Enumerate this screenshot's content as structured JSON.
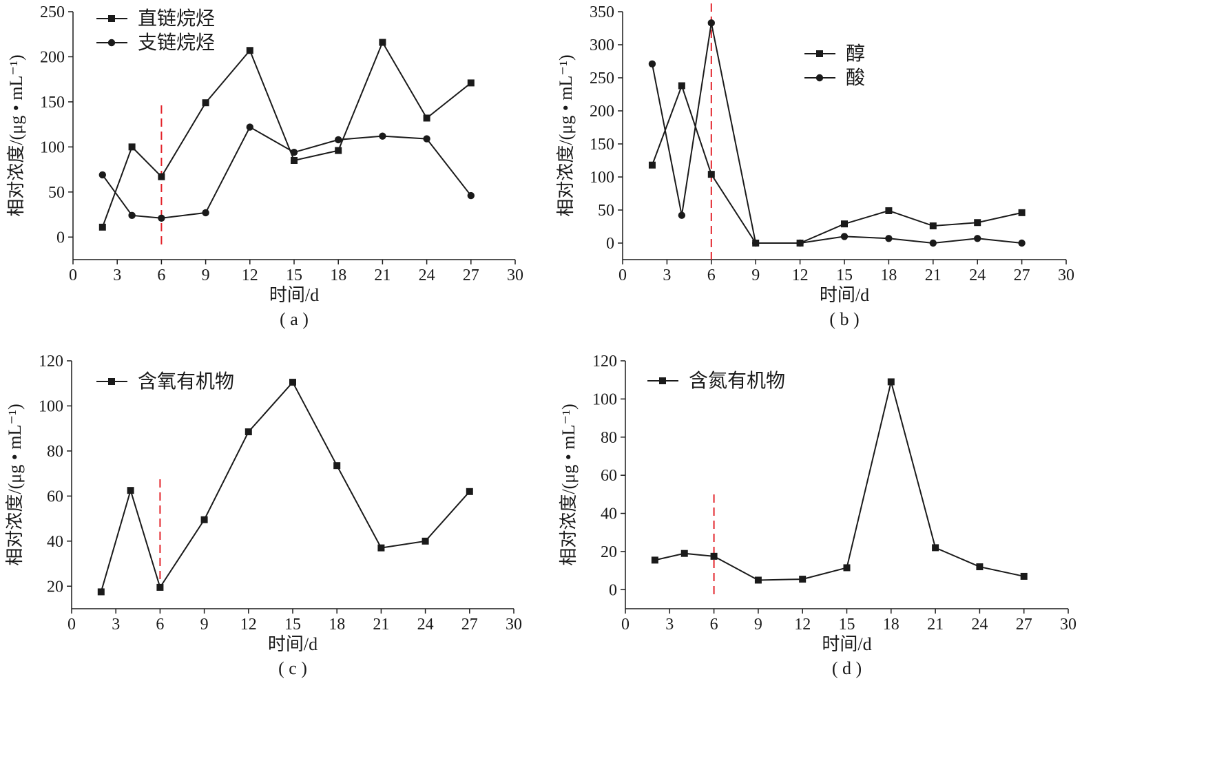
{
  "chart_data": [
    {
      "type": "line",
      "panel_label": "( a )",
      "xlabel": "时间/d",
      "ylabel": "相对浓度/(μg • mL⁻¹)",
      "xlim": [
        0,
        30
      ],
      "ylim": [
        -25,
        250
      ],
      "xticks": [
        0,
        3,
        6,
        9,
        12,
        15,
        18,
        21,
        24,
        27,
        30
      ],
      "yticks": [
        0,
        50,
        100,
        150,
        200,
        250
      ],
      "marker_line_x": 6,
      "grid": false,
      "legend_position": "top-left",
      "series": [
        {
          "name": "直链烷烃",
          "marker": "square",
          "x": [
            2,
            4,
            6,
            9,
            12,
            15,
            18,
            21,
            24,
            27
          ],
          "values": [
            11,
            100,
            67,
            149,
            207,
            85,
            96,
            216,
            132,
            171
          ]
        },
        {
          "name": "支链烷烃",
          "marker": "circle",
          "x": [
            2,
            4,
            6,
            9,
            12,
            15,
            18,
            21,
            24,
            27
          ],
          "values": [
            69,
            24,
            21,
            27,
            122,
            94,
            108,
            112,
            109,
            46
          ]
        }
      ]
    },
    {
      "type": "line",
      "panel_label": "( b )",
      "xlabel": "时间/d",
      "ylabel": "相对浓度/(μg • mL⁻¹)",
      "xlim": [
        0,
        30
      ],
      "ylim": [
        -25,
        350
      ],
      "xticks": [
        0,
        3,
        6,
        9,
        12,
        15,
        18,
        21,
        24,
        27,
        30
      ],
      "yticks": [
        0,
        50,
        100,
        150,
        200,
        250,
        300,
        350
      ],
      "marker_line_x": 6,
      "grid": false,
      "legend_position": "top-center",
      "series": [
        {
          "name": "醇",
          "marker": "square",
          "x": [
            2,
            4,
            6,
            9,
            12,
            15,
            18,
            21,
            24,
            27
          ],
          "values": [
            118,
            238,
            104,
            0,
            0,
            29,
            49,
            26,
            31,
            46
          ]
        },
        {
          "name": "酸",
          "marker": "circle",
          "x": [
            2,
            4,
            6,
            9,
            12,
            15,
            18,
            21,
            24,
            27
          ],
          "values": [
            271,
            42,
            333,
            0,
            0,
            10,
            7,
            0,
            7,
            0
          ]
        }
      ]
    },
    {
      "type": "line",
      "panel_label": "( c )",
      "xlabel": "时间/d",
      "ylabel": "相对浓度/(μg • mL⁻¹)",
      "xlim": [
        0,
        30
      ],
      "ylim": [
        10,
        120
      ],
      "xticks": [
        0,
        3,
        6,
        9,
        12,
        15,
        18,
        21,
        24,
        27,
        30
      ],
      "yticks": [
        20,
        40,
        60,
        80,
        100,
        120
      ],
      "marker_line_x": 6,
      "grid": false,
      "legend_position": "top-left",
      "series": [
        {
          "name": "含氧有机物",
          "marker": "square",
          "x": [
            2,
            4,
            6,
            9,
            12,
            15,
            18,
            21,
            24,
            27
          ],
          "values": [
            17.5,
            62.5,
            19.5,
            49.5,
            88.5,
            110.5,
            73.5,
            37,
            40,
            62
          ]
        }
      ]
    },
    {
      "type": "line",
      "panel_label": "( d )",
      "xlabel": "时间/d",
      "ylabel": "相对浓度/(μg • mL⁻¹)",
      "xlim": [
        0,
        30
      ],
      "ylim": [
        -10,
        120
      ],
      "xticks": [
        0,
        3,
        6,
        9,
        12,
        15,
        18,
        21,
        24,
        27,
        30
      ],
      "yticks": [
        0,
        20,
        40,
        60,
        80,
        100,
        120
      ],
      "marker_line_x": 6,
      "grid": false,
      "legend_position": "top-left",
      "series": [
        {
          "name": "含氮有机物",
          "marker": "square",
          "x": [
            2,
            4,
            6,
            9,
            12,
            15,
            18,
            21,
            24,
            27
          ],
          "values": [
            15.5,
            19,
            17.5,
            5,
            5.5,
            11.5,
            109,
            22,
            12,
            7
          ]
        }
      ]
    }
  ]
}
